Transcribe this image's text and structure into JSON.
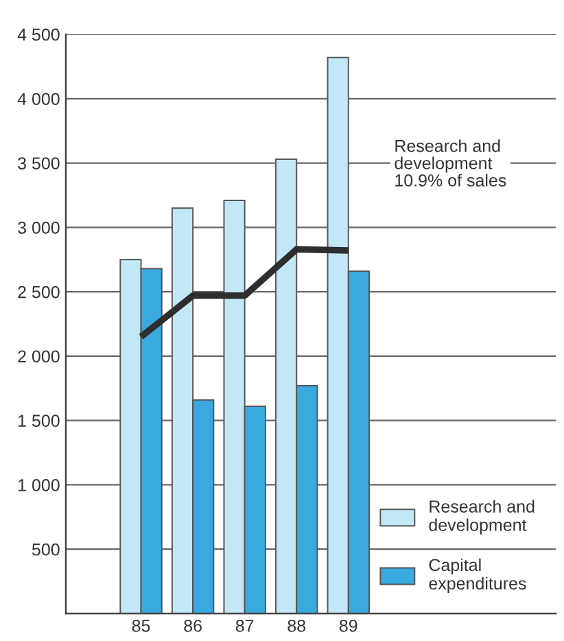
{
  "chart_data": {
    "type": "bar",
    "categories": [
      "85",
      "86",
      "87",
      "88",
      "89"
    ],
    "series": [
      {
        "name": "Research and\ndevelopment",
        "color": "#c2e7f7",
        "values": [
          2750,
          3150,
          3210,
          3530,
          4320
        ]
      },
      {
        "name": "Capital\nexpenditures",
        "color": "#3aa9e0",
        "values": [
          2680,
          1660,
          1610,
          1770,
          2660
        ]
      },
      {
        "type": "line",
        "color": "#2e2e2e",
        "values": [
          2150,
          2470,
          2470,
          2830,
          2820
        ]
      }
    ],
    "ylim": [
      0,
      4500
    ],
    "yticks": [
      500,
      {
        "value": 1000,
        "label": "1 000"
      },
      {
        "value": 1500,
        "label": "1 500"
      },
      {
        "value": 2000,
        "label": "2 000"
      },
      {
        "value": 2500,
        "label": "2 500"
      },
      {
        "value": 3000,
        "label": "3 000"
      },
      {
        "value": 3500,
        "label": "3 500"
      },
      {
        "value": 4000,
        "label": "4 000"
      },
      {
        "value": 4500,
        "label": "4 500"
      }
    ],
    "annotations": [
      "Research and\ndevelopment\n10.9% of sales"
    ],
    "grid": "y",
    "legend": "bottom right"
  }
}
